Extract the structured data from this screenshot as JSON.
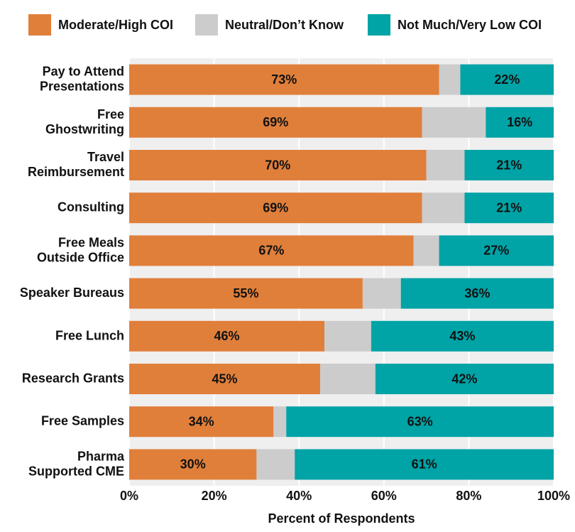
{
  "chart_data": {
    "type": "stacked-barh",
    "x_label": "Percent of Respondents",
    "categories": [
      "Pay to Attend\nPresentations",
      "Free\nGhostwriting",
      "Travel\nReimbursement",
      "Consulting",
      "Free Meals\nOutside Office",
      "Speaker Bureaus",
      "Free Lunch",
      "Research Grants",
      "Free Samples",
      "Pharma\nSupported CME"
    ],
    "series": [
      {
        "name": "Moderate/High COI",
        "color": "#e07f3a",
        "label_color": "#111111",
        "values": [
          73,
          69,
          70,
          69,
          67,
          55,
          46,
          45,
          34,
          30
        ],
        "value_labels": [
          "73%",
          "69%",
          "70%",
          "69%",
          "67%",
          "55%",
          "46%",
          "45%",
          "34%",
          "30%"
        ]
      },
      {
        "name": "Neutral/Don’t Know",
        "color": "#cccccc",
        "values": [
          5,
          15,
          9,
          10,
          6,
          9,
          11,
          13,
          3,
          9
        ]
      },
      {
        "name": "Not Much/Very Low COI",
        "color": "#00a3a6",
        "label_color": "#ffffff",
        "values": [
          22,
          16,
          21,
          21,
          27,
          36,
          43,
          42,
          63,
          61
        ],
        "value_labels": [
          "22%",
          "16%",
          "21%",
          "21%",
          "27%",
          "36%",
          "43%",
          "42%",
          "63%",
          "61%"
        ]
      }
    ],
    "xlim": [
      0,
      100
    ],
    "xticks": [
      {
        "value": 0,
        "label": "0%"
      },
      {
        "value": 20,
        "label": "20%"
      },
      {
        "value": 40,
        "label": "40%"
      },
      {
        "value": 60,
        "label": "60%"
      },
      {
        "value": 80,
        "label": "80%"
      },
      {
        "value": 100,
        "label": "100%"
      }
    ],
    "grid": true,
    "legend": "top"
  }
}
